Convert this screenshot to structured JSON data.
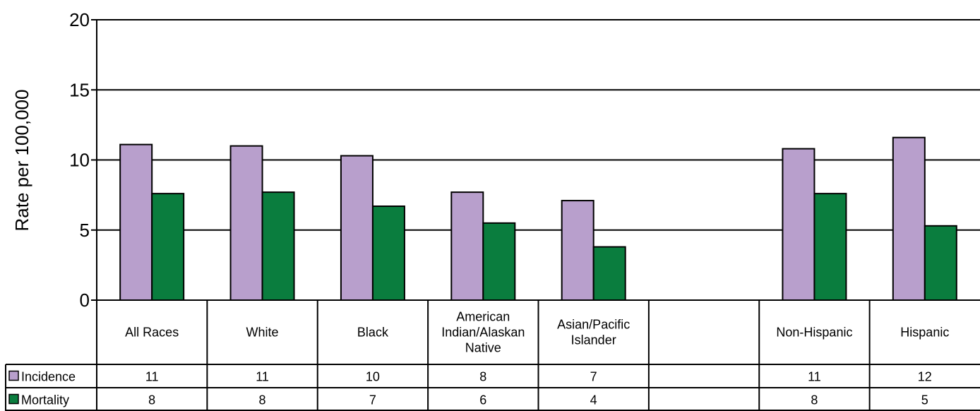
{
  "chart_data": {
    "type": "bar",
    "title": "",
    "xlabel": "",
    "ylabel": "Rate per 100,000",
    "ylim": [
      0,
      20
    ],
    "yticks": [
      "0",
      "5",
      "10",
      "15",
      "20"
    ],
    "grid": true,
    "legend_position": "data-table-left",
    "categories": [
      "All Races",
      "White",
      "Black",
      "American Indian/Alaskan Native",
      "Asian/Pacific Islander",
      "",
      "Non-Hispanic",
      "Hispanic"
    ],
    "category_lines": [
      [
        "All Races"
      ],
      [
        "White"
      ],
      [
        "Black"
      ],
      [
        "American",
        "Indian/Alaskan",
        "Native"
      ],
      [
        "Asian/Pacific",
        "Islander"
      ],
      [],
      [
        "Non-Hispanic"
      ],
      [
        "Hispanic"
      ]
    ],
    "series": [
      {
        "name": "Incidence",
        "color": "#b89fcc",
        "values": [
          11.1,
          11.0,
          10.3,
          7.7,
          7.1,
          null,
          10.8,
          11.6
        ],
        "table_labels": [
          "11",
          "11",
          "10",
          "8",
          "7",
          "",
          "11",
          "12"
        ]
      },
      {
        "name": "Mortality",
        "color": "#0a7d3e",
        "values": [
          7.6,
          7.7,
          6.7,
          5.5,
          3.8,
          null,
          7.6,
          5.3
        ],
        "table_labels": [
          "8",
          "8",
          "7",
          "6",
          "4",
          "",
          "8",
          "5"
        ]
      }
    ]
  }
}
